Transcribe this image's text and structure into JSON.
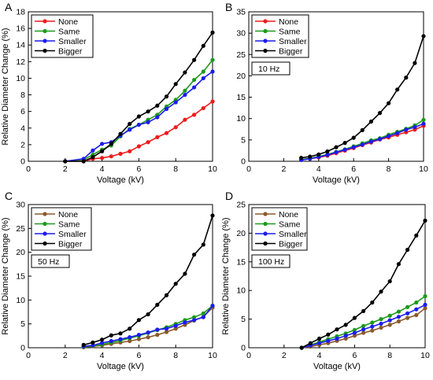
{
  "chart_data": [
    {
      "panel": "A",
      "type": "line",
      "xlabel": "Voltage (kV)",
      "ylabel": "Relative Diameter Change (%)",
      "xlim": [
        0,
        10
      ],
      "ylim": [
        0,
        18
      ],
      "xticks": [
        0,
        2,
        4,
        6,
        8,
        10
      ],
      "yticks": [
        0,
        2,
        4,
        6,
        8,
        10,
        12,
        14,
        16,
        18
      ],
      "frequency_label": "",
      "legend_position": "top-left",
      "series": [
        {
          "name": "None",
          "color": "#ee1c1c",
          "x": [
            2,
            3,
            3.5,
            4,
            4.5,
            5,
            5.5,
            6,
            6.5,
            7,
            7.5,
            8,
            8.5,
            9,
            9.5,
            10
          ],
          "y": [
            0,
            0,
            0.3,
            0.4,
            0.6,
            0.9,
            1.2,
            1.8,
            2.3,
            2.9,
            3.4,
            4.1,
            5.0,
            5.6,
            6.4,
            7.2
          ]
        },
        {
          "name": "Same",
          "color": "#1c9a1c",
          "x": [
            2,
            3,
            3.5,
            4,
            4.5,
            5,
            5.5,
            6,
            6.5,
            7,
            7.5,
            8,
            8.5,
            9,
            9.5,
            10
          ],
          "y": [
            0,
            0.2,
            0.8,
            1.4,
            1.9,
            3.0,
            3.9,
            4.4,
            5.0,
            5.6,
            6.6,
            7.4,
            8.5,
            9.8,
            10.8,
            12.2
          ]
        },
        {
          "name": "Smaller",
          "color": "#1c1cee",
          "x": [
            2,
            3,
            3.5,
            4,
            4.5,
            5,
            5.5,
            6,
            6.5,
            7,
            7.5,
            8,
            8.5,
            9,
            9.5,
            10
          ],
          "y": [
            0,
            0.3,
            1.3,
            2.1,
            2.3,
            3.1,
            3.8,
            4.4,
            4.7,
            5.3,
            6.3,
            7.1,
            8.0,
            8.9,
            10.0,
            10.8
          ]
        },
        {
          "name": "Bigger",
          "color": "#000000",
          "x": [
            2,
            3,
            3.5,
            4,
            4.5,
            5,
            5.5,
            6,
            6.5,
            7,
            7.5,
            8,
            8.5,
            9,
            9.5,
            10
          ],
          "y": [
            0,
            0,
            0.5,
            1.2,
            2.1,
            3.3,
            4.5,
            5.4,
            6.0,
            6.7,
            7.8,
            9.3,
            10.7,
            12.2,
            13.9,
            15.5
          ]
        }
      ]
    },
    {
      "panel": "B",
      "type": "line",
      "xlabel": "Voltage (kV)",
      "ylabel": "",
      "xlim": [
        0,
        10
      ],
      "ylim": [
        0,
        35
      ],
      "xticks": [
        0,
        2,
        4,
        6,
        8,
        10
      ],
      "yticks": [
        0,
        5,
        10,
        15,
        20,
        25,
        30,
        35
      ],
      "frequency_label": "10 Hz",
      "legend_position": "top-left",
      "series": [
        {
          "name": "None",
          "color": "#ee1c1c",
          "x": [
            3,
            3.5,
            4,
            4.5,
            5,
            5.5,
            6,
            6.5,
            7,
            7.5,
            8,
            8.5,
            9,
            9.5,
            10
          ],
          "y": [
            0.4,
            0.6,
            0.9,
            1.3,
            1.9,
            2.5,
            3.1,
            3.8,
            4.4,
            5.1,
            5.6,
            6.2,
            6.8,
            7.4,
            8.3
          ]
        },
        {
          "name": "Same",
          "color": "#1c9a1c",
          "x": [
            3,
            3.5,
            4,
            4.5,
            5,
            5.5,
            6,
            6.5,
            7,
            7.5,
            8,
            8.5,
            9,
            9.5,
            10
          ],
          "y": [
            0.4,
            0.7,
            1.1,
            1.6,
            2.2,
            2.8,
            3.5,
            4.2,
            4.9,
            5.4,
            6.2,
            6.9,
            7.6,
            8.4,
            9.7
          ]
        },
        {
          "name": "Smaller",
          "color": "#1c1cee",
          "x": [
            3,
            3.5,
            4,
            4.5,
            5,
            5.5,
            6,
            6.5,
            7,
            7.5,
            8,
            8.5,
            9,
            9.5,
            10
          ],
          "y": [
            0.3,
            0.6,
            1.0,
            1.5,
            2.1,
            2.7,
            3.3,
            3.9,
            4.6,
            5.2,
            5.9,
            6.6,
            7.4,
            8.0,
            8.8
          ]
        },
        {
          "name": "Bigger",
          "color": "#000000",
          "x": [
            3,
            3.5,
            4,
            4.5,
            5,
            5.5,
            6,
            6.5,
            7,
            7.5,
            8,
            8.5,
            9,
            9.5,
            10
          ],
          "y": [
            0.8,
            1.1,
            1.6,
            2.3,
            3.3,
            4.3,
            5.5,
            7.3,
            9.3,
            11.3,
            13.6,
            16.8,
            19.6,
            23.0,
            29.3
          ]
        }
      ]
    },
    {
      "panel": "C",
      "type": "line",
      "xlabel": "Voltage (kV)",
      "ylabel": "Relative Diameter Change (%)",
      "xlim": [
        0,
        10
      ],
      "ylim": [
        0,
        30
      ],
      "xticks": [
        0,
        2,
        4,
        6,
        8,
        10
      ],
      "yticks": [
        0,
        5,
        10,
        15,
        20,
        25,
        30
      ],
      "frequency_label": "50 Hz",
      "legend_position": "top-left",
      "series": [
        {
          "name": "None",
          "color": "#8b5a2b",
          "x": [
            3,
            3.5,
            4,
            4.5,
            5,
            5.5,
            6,
            6.5,
            7,
            7.5,
            8,
            8.5,
            9,
            9.5,
            10
          ],
          "y": [
            0.1,
            0.3,
            0.5,
            0.8,
            1.1,
            1.4,
            1.8,
            2.2,
            2.7,
            3.3,
            4.0,
            4.8,
            5.7,
            6.5,
            8.4
          ]
        },
        {
          "name": "Same",
          "color": "#1c9a1c",
          "x": [
            3,
            3.5,
            4,
            4.5,
            5,
            5.5,
            6,
            6.5,
            7,
            7.5,
            8,
            8.5,
            9,
            9.5,
            10
          ],
          "y": [
            0.2,
            0.4,
            0.7,
            1.1,
            1.5,
            2.0,
            2.5,
            3.1,
            3.7,
            4.3,
            5.0,
            5.8,
            6.4,
            7.2,
            8.8
          ]
        },
        {
          "name": "Smaller",
          "color": "#1c1cee",
          "x": [
            3,
            3.5,
            4,
            4.5,
            5,
            5.5,
            6,
            6.5,
            7,
            7.5,
            8,
            8.5,
            9,
            9.5,
            10
          ],
          "y": [
            0.3,
            0.5,
            1.0,
            1.4,
            1.8,
            2.2,
            2.7,
            3.2,
            3.8,
            4.0,
            4.6,
            5.3,
            5.8,
            6.4,
            8.8
          ]
        },
        {
          "name": "Bigger",
          "color": "#000000",
          "x": [
            3,
            3.5,
            4,
            4.5,
            5,
            5.5,
            6,
            6.5,
            7,
            7.5,
            8,
            8.5,
            9,
            9.5,
            10
          ],
          "y": [
            0.6,
            1.1,
            1.7,
            2.6,
            3.0,
            4.0,
            5.8,
            7.0,
            9.0,
            11.0,
            13.4,
            15.5,
            19.5,
            21.6,
            27.7
          ]
        }
      ]
    },
    {
      "panel": "D",
      "type": "line",
      "xlabel": "Voltage (kV)",
      "ylabel": "Relative Diameter Change (%)",
      "xlim": [
        0,
        10
      ],
      "ylim": [
        0,
        25
      ],
      "xticks": [
        0,
        2,
        4,
        6,
        8,
        10
      ],
      "yticks": [
        0,
        5,
        10,
        15,
        20,
        25
      ],
      "frequency_label": "100 Hz",
      "legend_position": "top-left",
      "series": [
        {
          "name": "None",
          "color": "#8b5a2b",
          "x": [
            3,
            3.5,
            4,
            4.5,
            5,
            5.5,
            6,
            6.5,
            7,
            7.5,
            8,
            8.5,
            9,
            9.5,
            10
          ],
          "y": [
            0,
            0.2,
            0.5,
            0.8,
            1.2,
            1.6,
            2.1,
            2.6,
            3.0,
            3.5,
            4.0,
            4.6,
            5.2,
            5.7,
            6.9
          ]
        },
        {
          "name": "Same",
          "color": "#1c9a1c",
          "x": [
            3,
            3.5,
            4,
            4.5,
            5,
            5.5,
            6,
            6.5,
            7,
            7.5,
            8,
            8.5,
            9,
            9.5,
            10
          ],
          "y": [
            0,
            0.5,
            1.0,
            1.5,
            2.0,
            2.5,
            3.1,
            3.8,
            4.4,
            5.0,
            5.6,
            6.3,
            7.1,
            7.9,
            9.0
          ]
        },
        {
          "name": "Smaller",
          "color": "#1c1cee",
          "x": [
            3,
            3.5,
            4,
            4.5,
            5,
            5.5,
            6,
            6.5,
            7,
            7.5,
            8,
            8.5,
            9,
            9.5,
            10
          ],
          "y": [
            0,
            0.4,
            0.8,
            1.2,
            1.6,
            2.1,
            2.6,
            3.2,
            3.7,
            4.2,
            4.8,
            5.4,
            6.0,
            6.7,
            7.5
          ]
        },
        {
          "name": "Bigger",
          "color": "#000000",
          "x": [
            3,
            3.5,
            4,
            4.5,
            5,
            5.5,
            6,
            6.5,
            7,
            7.5,
            8,
            8.5,
            9,
            9.5,
            10
          ],
          "y": [
            0,
            0.8,
            1.6,
            2.3,
            3.2,
            4.0,
            5.2,
            6.4,
            7.9,
            9.8,
            11.6,
            14.6,
            17.1,
            19.6,
            22.2
          ]
        }
      ]
    }
  ]
}
